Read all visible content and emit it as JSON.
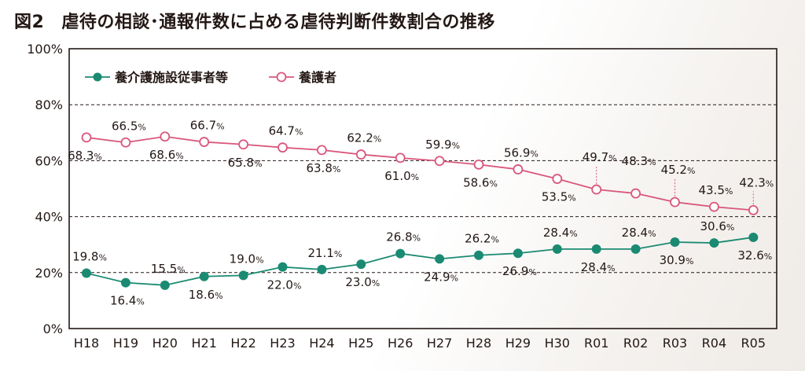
{
  "title_number": "図2",
  "title_text": "虐待の相談･通報件数に占める虐待判断件数割合の推移",
  "colors": {
    "facility": "#1b8a72",
    "family": "#d9577c",
    "grid": "#231815"
  },
  "chart_data": {
    "type": "line",
    "categories": [
      "H18",
      "H19",
      "H20",
      "H21",
      "H22",
      "H23",
      "H24",
      "H25",
      "H26",
      "H27",
      "H28",
      "H29",
      "H30",
      "R01",
      "R02",
      "R03",
      "R04",
      "R05"
    ],
    "ylim": [
      0,
      100
    ],
    "yticks": [
      0,
      20,
      40,
      60,
      80,
      100
    ],
    "ytick_labels": [
      "0%",
      "20%",
      "40%",
      "60%",
      "80%",
      "100%"
    ],
    "unit": "%",
    "legend_placement": "top-left",
    "series": [
      {
        "name": "養介護施設従事者等",
        "marker": "filled-circle",
        "values": [
          19.8,
          16.4,
          15.5,
          18.6,
          19.0,
          22.0,
          21.1,
          23.0,
          26.8,
          24.9,
          26.2,
          26.9,
          28.4,
          28.4,
          28.4,
          30.9,
          30.6,
          32.6
        ],
        "labels": [
          "19.8",
          "16.4",
          "15.5",
          "18.6",
          "19.0",
          "22.0",
          "21.1",
          "23.0",
          "26.8",
          "24.9",
          "26.2",
          "26.9",
          "28.4",
          "28.4",
          "28.4",
          "30.9",
          "30.6",
          "32.6"
        ]
      },
      {
        "name": "養護者",
        "marker": "open-circle",
        "values": [
          68.3,
          66.5,
          68.6,
          66.7,
          65.8,
          64.7,
          63.8,
          62.2,
          61.0,
          59.9,
          58.6,
          56.9,
          53.5,
          49.7,
          48.3,
          45.2,
          43.5,
          42.3
        ],
        "labels": [
          "68.3",
          "66.5",
          "68.6",
          "66.7",
          "65.8",
          "64.7",
          "63.8",
          "62.2",
          "61.0",
          "59.9",
          "58.6",
          "56.9",
          "53.5",
          "49.7",
          "48.3",
          "45.2",
          "43.5",
          "42.3"
        ]
      }
    ]
  }
}
